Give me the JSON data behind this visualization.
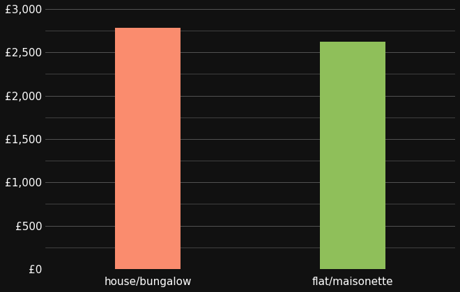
{
  "categories": [
    "house/bungalow",
    "flat/maisonette"
  ],
  "values": [
    2780,
    2620
  ],
  "bar_colors": [
    "#FA8C6E",
    "#8FBF5A"
  ],
  "background_color": "#111111",
  "text_color": "#ffffff",
  "ylim": [
    0,
    3000
  ],
  "yticks_major": [
    0,
    500,
    1000,
    1500,
    2000,
    2500,
    3000
  ],
  "ytick_labels": [
    "£0",
    "£500",
    "£1,000",
    "£1,500",
    "£2,000",
    "£2,500",
    "£3,000"
  ],
  "yticks_minor": [
    250,
    750,
    1250,
    1750,
    2250,
    2750
  ],
  "bar_width": 0.32,
  "grid_color": "#555555",
  "xlabel_fontsize": 11,
  "ytick_fontsize": 11
}
